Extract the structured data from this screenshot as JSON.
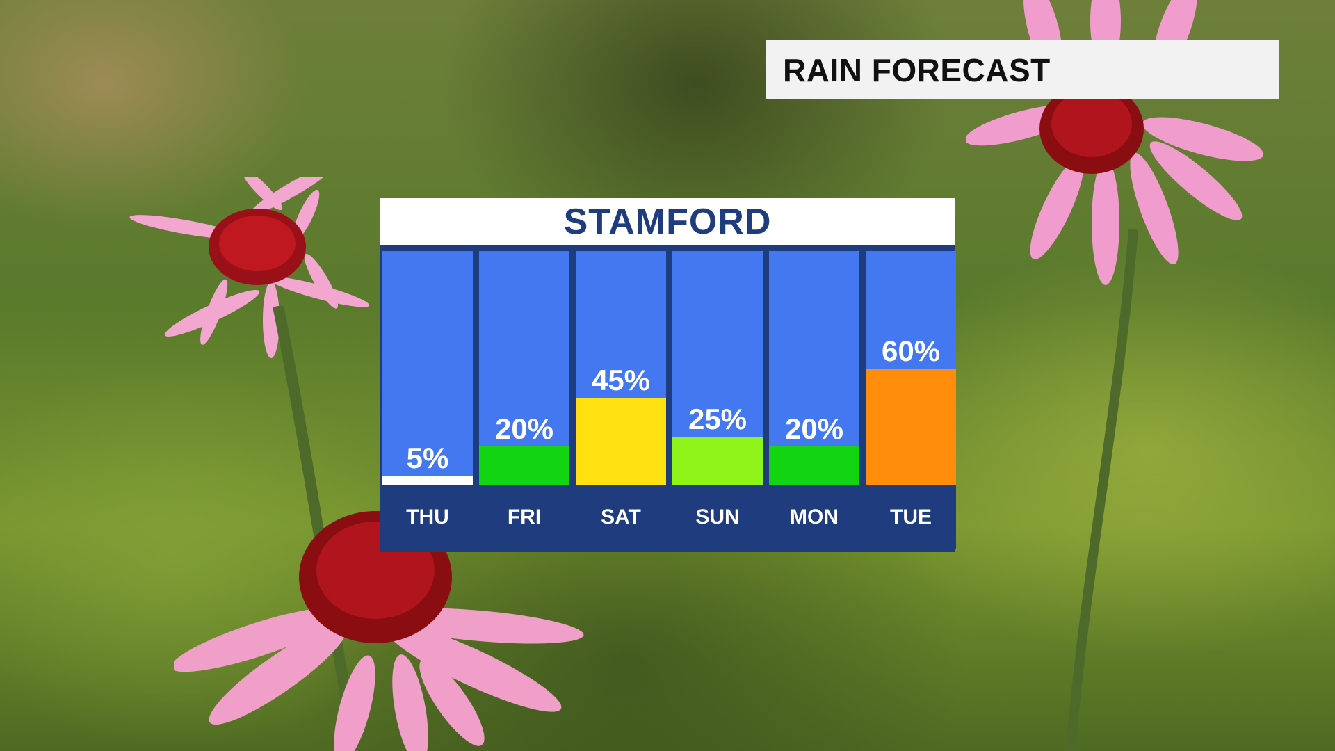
{
  "header": {
    "title": "RAIN FORECAST"
  },
  "chart_data": {
    "type": "bar",
    "title": "STAMFORD",
    "categories": [
      "THU",
      "FRI",
      "SAT",
      "SUN",
      "MON",
      "TUE"
    ],
    "values": [
      5,
      20,
      45,
      25,
      20,
      60
    ],
    "labels": [
      "5%",
      "20%",
      "45%",
      "25%",
      "20%",
      "60%"
    ],
    "ylim": [
      0,
      100
    ],
    "bar_colors": [
      "#ffffff",
      "#12d412",
      "#ffe010",
      "#8ef41a",
      "#12d412",
      "#ff8c0a"
    ],
    "colors": {
      "column_background": "#4478f0",
      "frame": "#1f3c7e",
      "title_text": "#1f3c7e"
    }
  }
}
